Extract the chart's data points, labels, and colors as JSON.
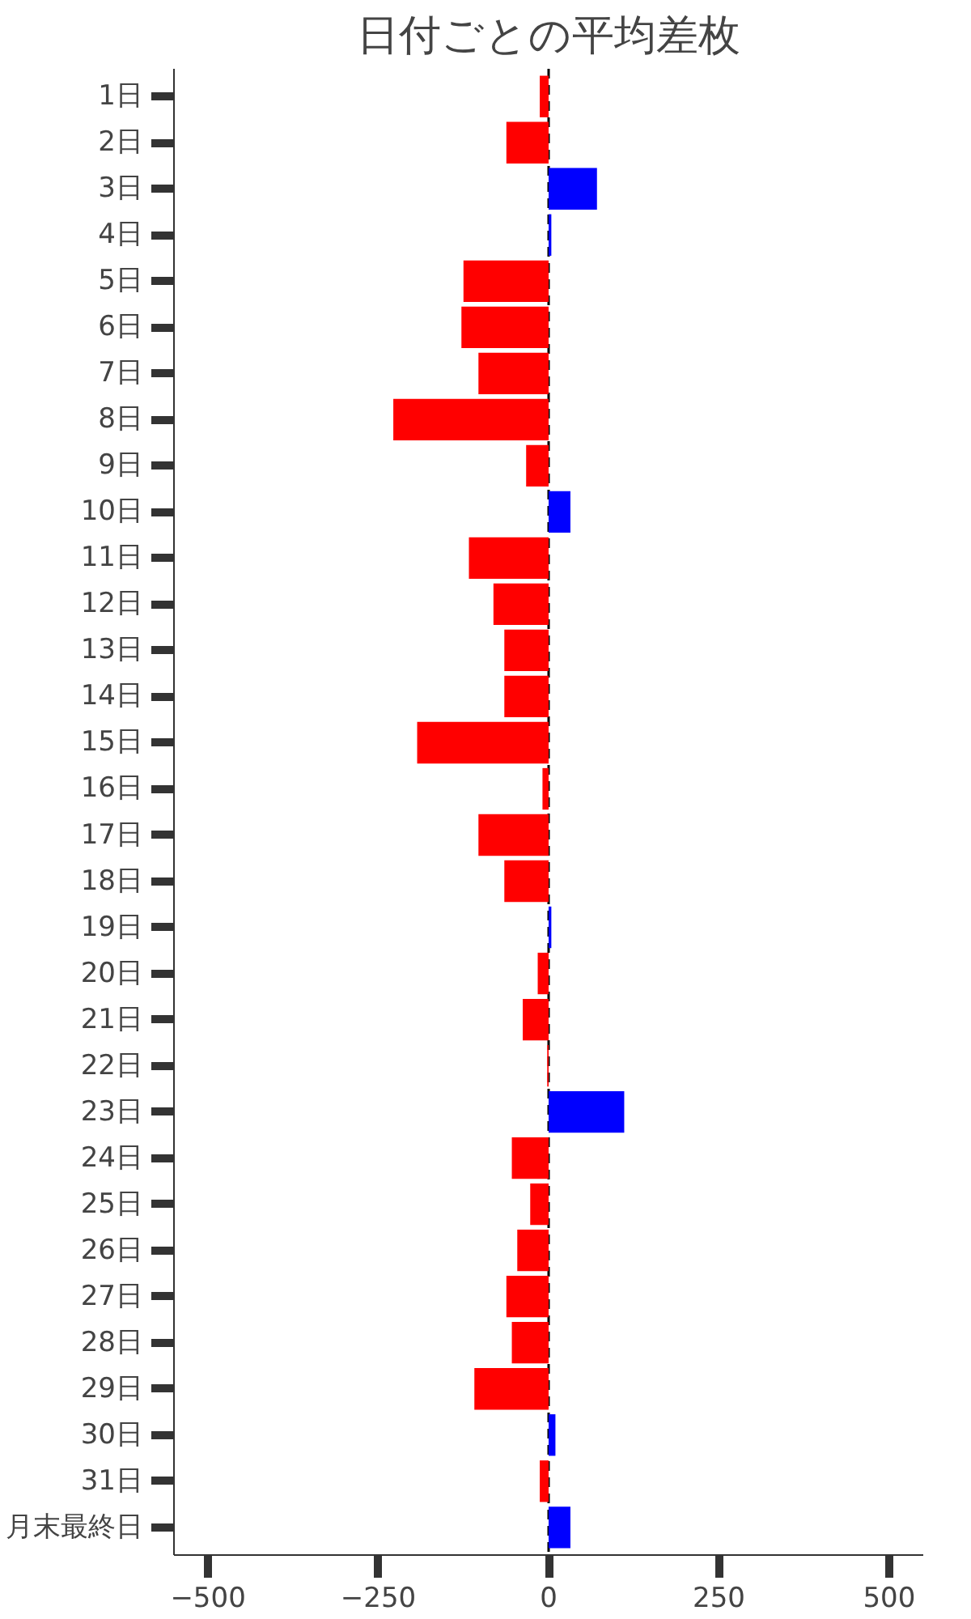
{
  "chart_data": {
    "type": "bar",
    "orientation": "horizontal",
    "title": "日付ごとの平均差枚",
    "categories": [
      "1日",
      "2日",
      "3日",
      "4日",
      "5日",
      "6日",
      "7日",
      "8日",
      "9日",
      "10日",
      "11日",
      "12日",
      "13日",
      "14日",
      "15日",
      "16日",
      "17日",
      "18日",
      "19日",
      "20日",
      "21日",
      "22日",
      "23日",
      "24日",
      "25日",
      "26日",
      "27日",
      "28日",
      "29日",
      "30日",
      "31日",
      "月末最終日"
    ],
    "values": [
      -13,
      -62,
      71,
      4,
      -125,
      -128,
      -103,
      -228,
      -33,
      32,
      -117,
      -81,
      -65,
      -65,
      -193,
      -9,
      -103,
      -65,
      4,
      -16,
      -38,
      -2,
      111,
      -54,
      -27,
      -46,
      -62,
      -54,
      -109,
      10,
      -13,
      32
    ],
    "colors": [
      "#ff0000",
      "#ff0000",
      "#0000ff",
      "#0000ff",
      "#ff0000",
      "#ff0000",
      "#ff0000",
      "#ff0000",
      "#ff0000",
      "#0000ff",
      "#ff0000",
      "#ff0000",
      "#ff0000",
      "#ff0000",
      "#ff0000",
      "#ff0000",
      "#ff0000",
      "#ff0000",
      "#0000ff",
      "#ff0000",
      "#ff0000",
      "#ff0000",
      "#0000ff",
      "#ff0000",
      "#ff0000",
      "#ff0000",
      "#ff0000",
      "#ff0000",
      "#ff0000",
      "#0000ff",
      "#ff0000",
      "#0000ff"
    ],
    "xlim": [
      -550,
      550
    ],
    "xticks": [
      -500,
      -250,
      0,
      250,
      500
    ],
    "ref_lines": [
      {
        "axis": "x",
        "value": 0,
        "color": "#000000",
        "line_style": "dashed"
      }
    ],
    "grid": false
  }
}
